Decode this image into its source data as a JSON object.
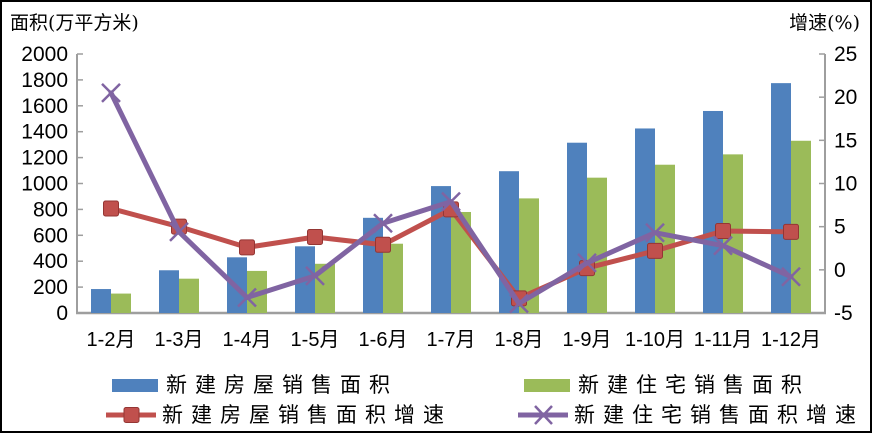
{
  "axis_titles": {
    "left": "面积(万平方米)",
    "right": "增速(%)"
  },
  "colors": {
    "background": "#ffffff",
    "border": "#000000",
    "axis_line": "#9e9e9e",
    "text": "#000000",
    "bar_blue": "#4F81BD",
    "bar_green": "#9BBB59",
    "line_red": "#C0504D",
    "line_purple": "#8064A2"
  },
  "chart_data": {
    "type": "bar",
    "subtype": "combo-bar-line-dual-axis",
    "categories": [
      "1-2月",
      "1-3月",
      "1-4月",
      "1-5月",
      "1-6月",
      "1-7月",
      "1-8月",
      "1-9月",
      "1-10月",
      "1-11月",
      "1-12月"
    ],
    "left_axis": {
      "title": "面积(万平方米)",
      "min": 0,
      "max": 2000,
      "step": 200
    },
    "right_axis": {
      "title": "增速(%)",
      "min": -5,
      "max": 25,
      "step": 5
    },
    "grid": false,
    "legend_position": "bottom",
    "series": [
      {
        "name": "新建房屋销售面积",
        "type": "bar",
        "axis": "left",
        "color": "#4F81BD",
        "marker": "none",
        "values": [
          185,
          330,
          430,
          515,
          735,
          980,
          1095,
          1315,
          1425,
          1560,
          1775
        ]
      },
      {
        "name": "新建住宅销售面积",
        "type": "bar",
        "axis": "left",
        "color": "#9BBB59",
        "marker": "none",
        "values": [
          150,
          265,
          325,
          380,
          535,
          780,
          885,
          1045,
          1145,
          1225,
          1330
        ]
      },
      {
        "name": "新建房屋销售面积增速",
        "type": "line",
        "axis": "right",
        "color": "#C0504D",
        "marker": "square",
        "values": [
          7.1,
          5.0,
          2.6,
          3.8,
          2.9,
          7.0,
          -3.3,
          0.2,
          2.2,
          4.5,
          4.4
        ]
      },
      {
        "name": "新建住宅销售面积增速",
        "type": "line",
        "axis": "right",
        "color": "#8064A2",
        "marker": "x",
        "values": [
          20.5,
          4.4,
          -3.2,
          -0.7,
          5.4,
          7.9,
          -3.9,
          0.8,
          4.3,
          2.8,
          -0.8
        ]
      }
    ]
  }
}
